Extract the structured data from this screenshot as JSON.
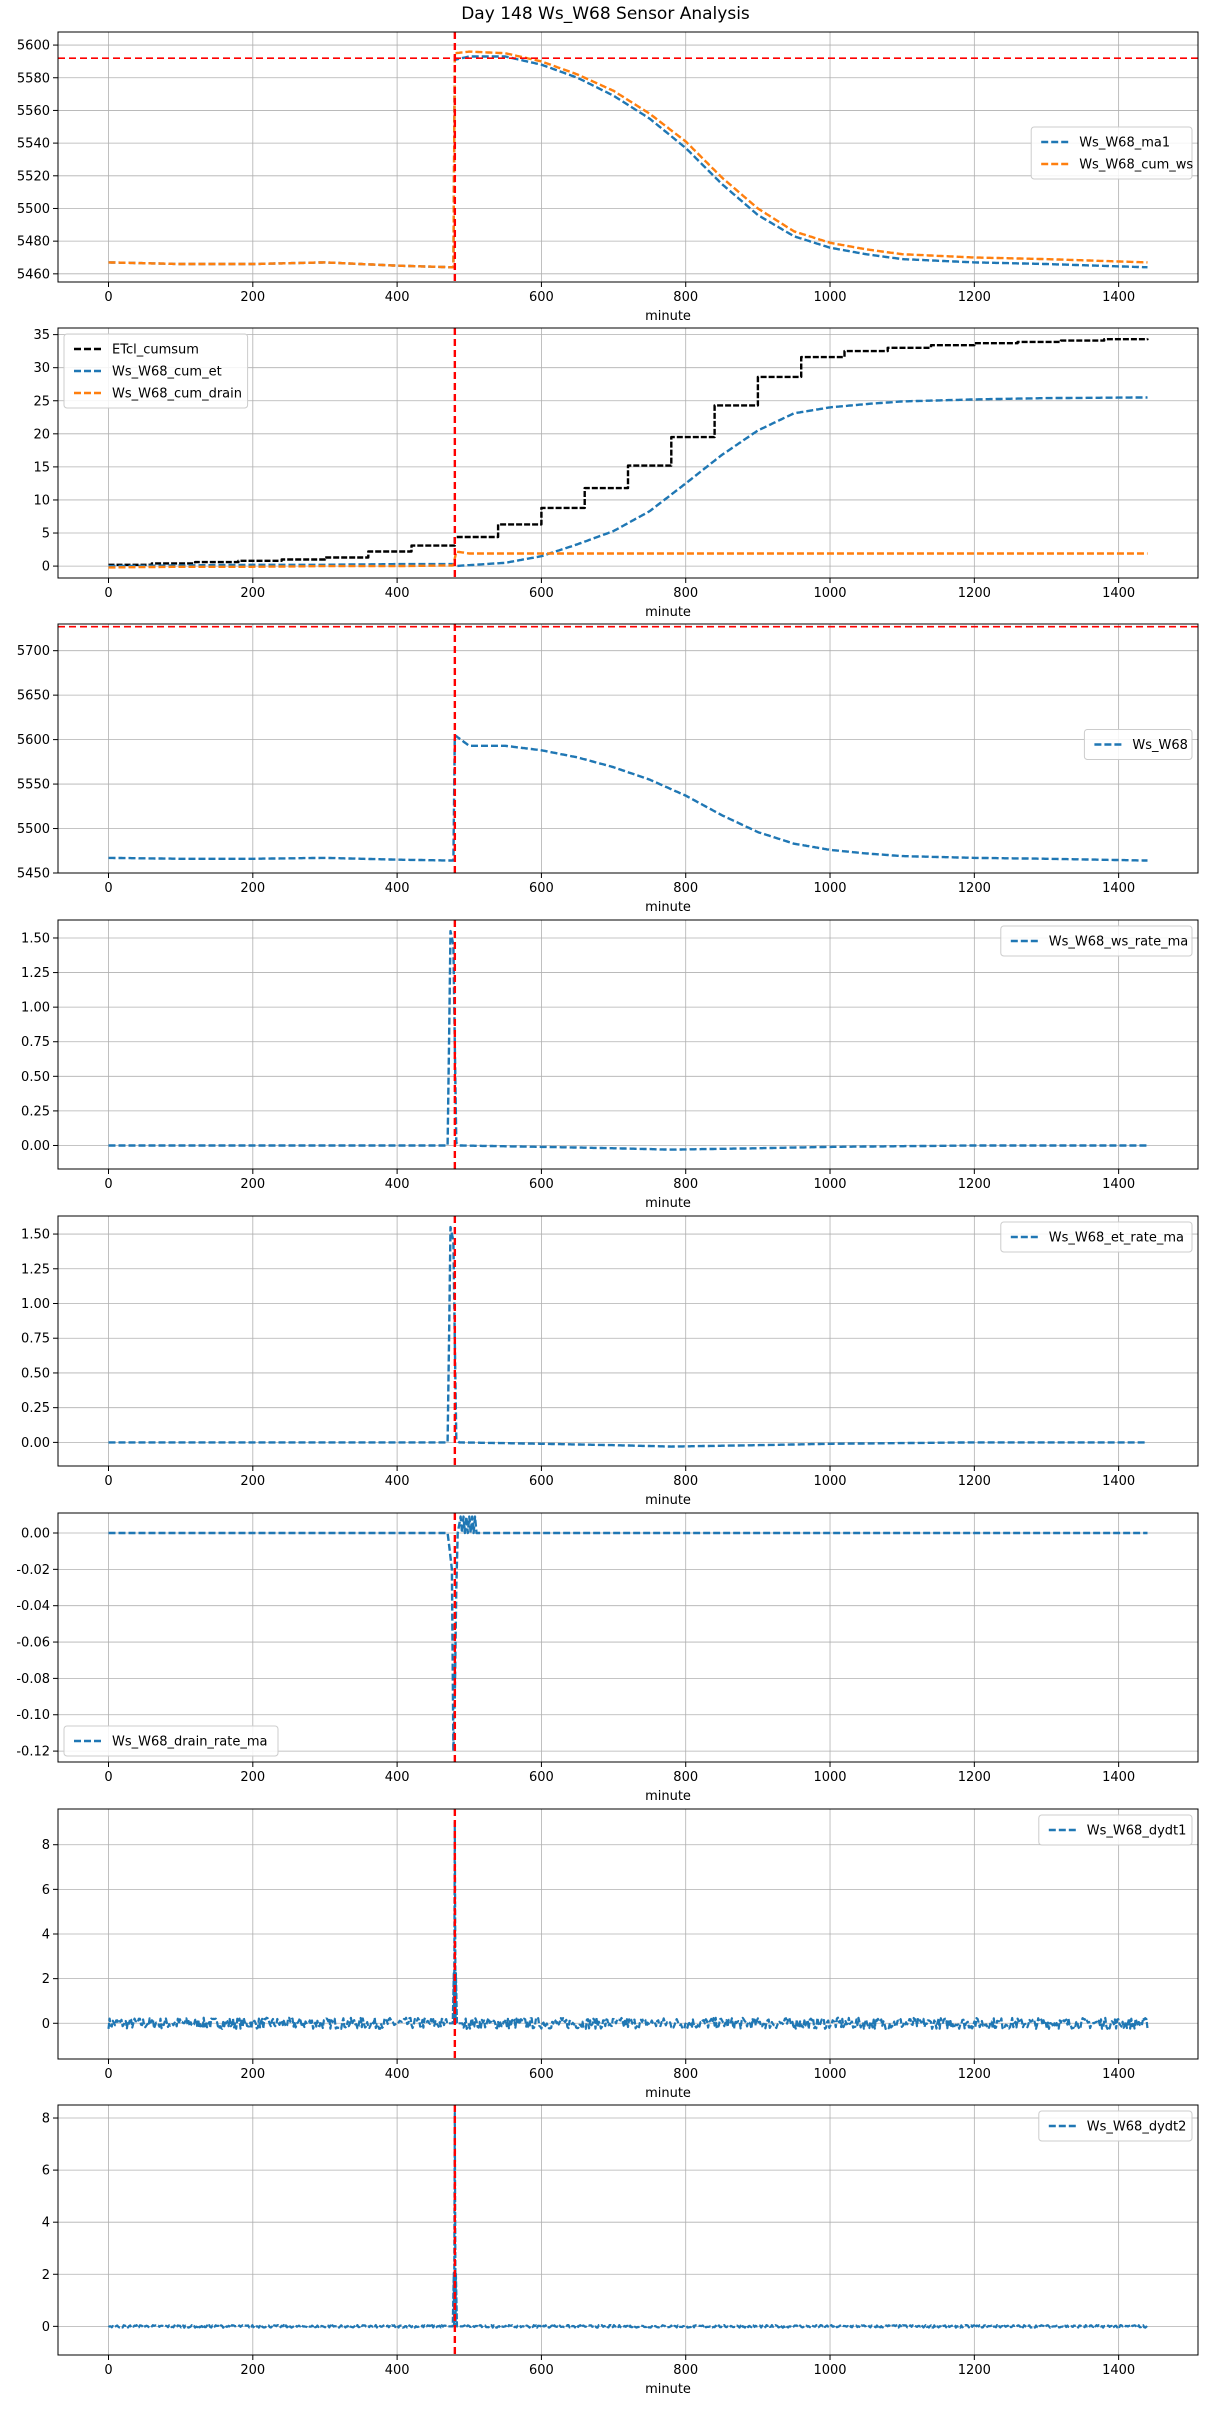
{
  "figure": {
    "title": "Day 148 Ws_W68 Sensor Analysis"
  },
  "colors": {
    "blue": "#1f77b4",
    "orange": "#ff7f0e",
    "black": "#000000",
    "red": "#ff0000",
    "grid": "#b0b0b0"
  },
  "chart_data": [
    {
      "type": "line",
      "xlabel": "minute",
      "xlim": [
        -70,
        1510
      ],
      "xticks": [
        0,
        200,
        400,
        600,
        800,
        1000,
        1200,
        1400
      ],
      "ylim": [
        5455,
        5608
      ],
      "yticks": [
        5460,
        5480,
        5500,
        5520,
        5540,
        5560,
        5580,
        5600
      ],
      "grid": true,
      "vline": 480,
      "hline": 5592,
      "legend": "center-right",
      "series": [
        {
          "name": "Ws_W68_ma1",
          "color": "blue",
          "style": "dashed",
          "x": [
            0,
            100,
            200,
            300,
            400,
            478,
            480,
            500,
            550,
            600,
            650,
            700,
            750,
            800,
            850,
            900,
            950,
            1000,
            1050,
            1100,
            1200,
            1300,
            1440
          ],
          "y": [
            5467,
            5466,
            5466,
            5467,
            5465,
            5464,
            5591,
            5593,
            5593,
            5588,
            5580,
            5569,
            5555,
            5537,
            5515,
            5496,
            5483,
            5476,
            5472,
            5469,
            5467,
            5466,
            5464
          ]
        },
        {
          "name": "Ws_W68_cum_ws",
          "color": "orange",
          "style": "dashed",
          "x": [
            0,
            100,
            200,
            300,
            400,
            478,
            480,
            500,
            550,
            600,
            650,
            700,
            750,
            800,
            850,
            900,
            950,
            1000,
            1050,
            1100,
            1200,
            1300,
            1440
          ],
          "y": [
            5467,
            5466,
            5466,
            5467,
            5465,
            5464,
            5595,
            5596,
            5595,
            5590,
            5582,
            5572,
            5558,
            5541,
            5519,
            5500,
            5486,
            5479,
            5475,
            5472,
            5470,
            5469,
            5467
          ]
        }
      ]
    },
    {
      "type": "line",
      "xlabel": "minute",
      "xlim": [
        -70,
        1510
      ],
      "xticks": [
        0,
        200,
        400,
        600,
        800,
        1000,
        1200,
        1400
      ],
      "ylim": [
        -1.8,
        36
      ],
      "yticks": [
        0,
        5,
        10,
        15,
        20,
        25,
        30,
        35
      ],
      "grid": true,
      "vline": 480,
      "legend": "upper-left",
      "series": [
        {
          "name": "ETcl_cumsum",
          "color": "black",
          "style": "steps",
          "x": [
            0,
            60,
            120,
            180,
            240,
            300,
            360,
            420,
            480,
            540,
            600,
            660,
            720,
            780,
            840,
            900,
            960,
            1020,
            1080,
            1140,
            1200,
            1260,
            1320,
            1380,
            1440
          ],
          "y": [
            0.2,
            0.4,
            0.6,
            0.8,
            1.0,
            1.3,
            2.2,
            3.1,
            4.4,
            6.3,
            8.8,
            11.8,
            15.2,
            19.5,
            24.3,
            28.6,
            31.6,
            32.5,
            33.0,
            33.4,
            33.7,
            33.9,
            34.1,
            34.3,
            34.4
          ]
        },
        {
          "name": "Ws_W68_cum_et",
          "color": "blue",
          "style": "dashed",
          "x": [
            0,
            100,
            200,
            300,
            400,
            478,
            480,
            550,
            600,
            650,
            700,
            750,
            800,
            850,
            900,
            950,
            1000,
            1050,
            1100,
            1200,
            1300,
            1440
          ],
          "y": [
            0,
            0.1,
            0.2,
            0.2,
            0.3,
            0.3,
            0,
            0.5,
            1.5,
            3.3,
            5.3,
            8.3,
            12.5,
            16.8,
            20.5,
            23.1,
            24.0,
            24.5,
            24.9,
            25.2,
            25.4,
            25.5
          ]
        },
        {
          "name": "Ws_W68_cum_drain",
          "color": "orange",
          "style": "dashed",
          "x": [
            0,
            100,
            200,
            300,
            400,
            478,
            482,
            500,
            600,
            800,
            1000,
            1200,
            1440
          ],
          "y": [
            -0.2,
            -0.1,
            -0.1,
            0,
            0,
            0.1,
            2.2,
            1.9,
            1.9,
            1.9,
            1.9,
            1.9,
            1.9
          ]
        }
      ]
    },
    {
      "type": "line",
      "xlabel": "minute",
      "xlim": [
        -70,
        1510
      ],
      "xticks": [
        0,
        200,
        400,
        600,
        800,
        1000,
        1200,
        1400
      ],
      "ylim": [
        5450,
        5730
      ],
      "yticks": [
        5450,
        5500,
        5550,
        5600,
        5650,
        5700
      ],
      "grid": true,
      "vline": 480,
      "hline": 5727,
      "legend": "center-right",
      "series": [
        {
          "name": "Ws_W68",
          "color": "blue",
          "style": "dashed",
          "x": [
            0,
            100,
            200,
            300,
            400,
            478,
            480,
            500,
            550,
            600,
            650,
            700,
            750,
            800,
            850,
            900,
            950,
            1000,
            1050,
            1100,
            1200,
            1300,
            1440
          ],
          "y": [
            5467,
            5466,
            5466,
            5467,
            5465,
            5464,
            5605,
            5593,
            5593,
            5588,
            5580,
            5569,
            5555,
            5537,
            5515,
            5496,
            5483,
            5476,
            5472,
            5469,
            5467,
            5466,
            5464
          ]
        }
      ]
    },
    {
      "type": "line",
      "xlabel": "minute",
      "xlim": [
        -70,
        1510
      ],
      "xticks": [
        0,
        200,
        400,
        600,
        800,
        1000,
        1200,
        1400
      ],
      "ylim": [
        -0.17,
        1.63
      ],
      "yticks": [
        0.0,
        0.25,
        0.5,
        0.75,
        1.0,
        1.25,
        1.5
      ],
      "grid": true,
      "vline": 480,
      "legend": "upper-right",
      "series": [
        {
          "name": "Ws_W68_ws_rate_ma",
          "color": "blue",
          "style": "dashed",
          "x": [
            0,
            200,
            400,
            470,
            474,
            478,
            482,
            486,
            600,
            700,
            780,
            900,
            1000,
            1200,
            1440
          ],
          "y": [
            0,
            0,
            0,
            0,
            1.55,
            1.45,
            0.02,
            0,
            -0.01,
            -0.02,
            -0.03,
            -0.02,
            -0.01,
            0,
            0
          ]
        }
      ]
    },
    {
      "type": "line",
      "xlabel": "minute",
      "xlim": [
        -70,
        1510
      ],
      "xticks": [
        0,
        200,
        400,
        600,
        800,
        1000,
        1200,
        1400
      ],
      "ylim": [
        -0.17,
        1.63
      ],
      "yticks": [
        0.0,
        0.25,
        0.5,
        0.75,
        1.0,
        1.25,
        1.5
      ],
      "grid": true,
      "vline": 480,
      "legend": "upper-right",
      "series": [
        {
          "name": "Ws_W68_et_rate_ma",
          "color": "blue",
          "style": "dashed",
          "x": [
            0,
            200,
            400,
            470,
            474,
            478,
            482,
            486,
            600,
            700,
            780,
            900,
            1000,
            1200,
            1440
          ],
          "y": [
            0,
            0,
            0,
            0,
            1.55,
            1.45,
            0.02,
            0,
            -0.01,
            -0.02,
            -0.03,
            -0.02,
            -0.01,
            0,
            0
          ]
        }
      ]
    },
    {
      "type": "line",
      "xlabel": "minute",
      "xlim": [
        -70,
        1510
      ],
      "xticks": [
        0,
        200,
        400,
        600,
        800,
        1000,
        1200,
        1400
      ],
      "ylim": [
        -0.126,
        0.011
      ],
      "yticks": [
        0.0,
        -0.02,
        -0.04,
        -0.06,
        -0.08,
        -0.1,
        -0.12
      ],
      "grid": true,
      "vline": 480,
      "legend": "lower-left",
      "series": [
        {
          "name": "Ws_W68_drain_rate_ma",
          "color": "blue",
          "style": "dashed",
          "x": [
            0,
            470,
            476,
            478,
            480,
            482,
            484,
            488,
            490,
            492,
            494,
            496,
            498,
            500,
            502,
            504,
            506,
            508,
            510,
            520,
            800,
            1440
          ],
          "y": [
            0,
            0,
            -0.02,
            -0.12,
            -0.09,
            -0.03,
            0,
            0.009,
            0,
            0.009,
            0,
            0.009,
            0,
            0.009,
            0,
            0.009,
            0,
            0.009,
            0,
            0,
            0,
            0
          ]
        }
      ]
    },
    {
      "type": "line",
      "xlabel": "minute",
      "xlim": [
        -70,
        1510
      ],
      "xticks": [
        0,
        200,
        400,
        600,
        800,
        1000,
        1200,
        1400
      ],
      "ylim": [
        -1.6,
        9.6
      ],
      "yticks": [
        0,
        2,
        4,
        6,
        8
      ],
      "grid": true,
      "vline": 480,
      "legend": "upper-right",
      "series": [
        {
          "name": "Ws_W68_dydt1",
          "color": "blue",
          "style": "dashed",
          "noise": 0.25,
          "x": [
            0,
            470,
            478,
            480,
            482,
            490,
            1440
          ],
          "y": [
            0,
            0,
            0,
            9.0,
            0,
            0,
            0
          ]
        }
      ]
    },
    {
      "type": "line",
      "xlabel": "minute",
      "xlim": [
        -70,
        1510
      ],
      "xticks": [
        0,
        200,
        400,
        600,
        800,
        1000,
        1200,
        1400
      ],
      "ylim": [
        -1.1,
        8.5
      ],
      "yticks": [
        0,
        2,
        4,
        6,
        8
      ],
      "grid": true,
      "vline": 480,
      "legend": "upper-right",
      "series": [
        {
          "name": "Ws_W68_dydt2",
          "color": "blue",
          "style": "dashed",
          "noise": 0.05,
          "x": [
            0,
            470,
            478,
            480,
            482,
            490,
            1440
          ],
          "y": [
            0,
            0,
            0,
            8.2,
            0,
            0,
            0
          ]
        }
      ]
    }
  ]
}
